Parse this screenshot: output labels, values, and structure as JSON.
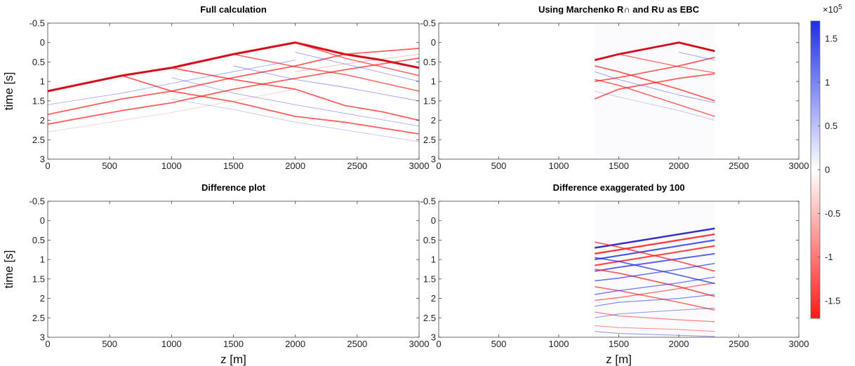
{
  "chart_data": [
    {
      "type": "heatmap",
      "title": "Full calculation",
      "xlabel": "",
      "ylabel": "time [s]",
      "xlim": [
        0,
        3000
      ],
      "ylim": [
        -0.5,
        3
      ],
      "y_reversed": true,
      "x_ticks": [
        "0",
        "500",
        "1000",
        "1500",
        "2000",
        "2500",
        "3000"
      ],
      "y_ticks": [
        "-0.5",
        "0",
        "0.5",
        "1",
        "1.5",
        "2",
        "2.5",
        "3"
      ],
      "events": [
        {
          "polarity": -1,
          "weight": 3.2,
          "points": [
            [
              0,
              1.25
            ],
            [
              600,
              0.85
            ],
            [
              1000,
              0.65
            ],
            [
              1500,
              0.3
            ],
            [
              2000,
              0.0
            ],
            [
              2400,
              0.3
            ],
            [
              2700,
              0.45
            ],
            [
              3000,
              0.65
            ]
          ]
        },
        {
          "polarity": -1,
          "weight": 1.8,
          "points": [
            [
              600,
              0.85
            ],
            [
              1000,
              1.25
            ],
            [
              1500,
              1.52
            ],
            [
              2000,
              1.9
            ],
            [
              2400,
              2.05
            ],
            [
              3000,
              2.35
            ]
          ]
        },
        {
          "polarity": -1,
          "weight": 1.8,
          "points": [
            [
              1000,
              0.65
            ],
            [
              1500,
              0.95
            ],
            [
              2000,
              1.2
            ],
            [
              2400,
              1.62
            ],
            [
              2700,
              1.78
            ],
            [
              3000,
              2.0
            ]
          ]
        },
        {
          "polarity": -1,
          "weight": 1.6,
          "points": [
            [
              1500,
              0.3
            ],
            [
              2000,
              0.62
            ],
            [
              2400,
              0.82
            ],
            [
              3000,
              1.25
            ]
          ]
        },
        {
          "polarity": -1,
          "weight": 1.6,
          "points": [
            [
              2000,
              0.0
            ],
            [
              2400,
              0.4
            ],
            [
              3000,
              0.85
            ]
          ]
        },
        {
          "polarity": -1,
          "weight": 1.8,
          "points": [
            [
              0,
              1.85
            ],
            [
              600,
              1.45
            ],
            [
              1000,
              1.25
            ],
            [
              1500,
              0.9
            ],
            [
              2000,
              0.6
            ],
            [
              2400,
              0.3
            ],
            [
              3000,
              0.15
            ]
          ]
        },
        {
          "polarity": -1,
          "weight": 1.8,
          "points": [
            [
              0,
              2.1
            ],
            [
              600,
              1.75
            ],
            [
              1000,
              1.55
            ],
            [
              1500,
              1.2
            ],
            [
              2000,
              0.92
            ],
            [
              2400,
              0.7
            ],
            [
              3000,
              0.4
            ]
          ]
        },
        {
          "polarity": 1,
          "weight": 0.9,
          "points": [
            [
              1500,
              0.6
            ],
            [
              2000,
              0.95
            ],
            [
              2400,
              1.15
            ],
            [
              3000,
              1.5
            ]
          ]
        },
        {
          "polarity": 1,
          "weight": 0.9,
          "points": [
            [
              2000,
              0.25
            ],
            [
              2400,
              0.55
            ],
            [
              3000,
              1.0
            ]
          ]
        },
        {
          "polarity": 1,
          "weight": 0.8,
          "points": [
            [
              1000,
              0.9
            ],
            [
              1500,
              1.3
            ],
            [
              2000,
              1.6
            ],
            [
              3000,
              2.15
            ]
          ]
        },
        {
          "polarity": 1,
          "weight": 0.8,
          "points": [
            [
              0,
              1.6
            ],
            [
              600,
              1.3
            ],
            [
              1000,
              1.05
            ],
            [
              1500,
              0.75
            ],
            [
              2000,
              0.45
            ]
          ]
        },
        {
          "polarity": -1,
          "weight": 0.7,
          "points": [
            [
              2000,
              0.75
            ],
            [
              2400,
              0.55
            ],
            [
              3000,
              0.3
            ]
          ]
        },
        {
          "polarity": 1,
          "weight": 0.6,
          "points": [
            [
              1000,
              1.45
            ],
            [
              1500,
              1.72
            ],
            [
              2000,
              2.05
            ],
            [
              3000,
              2.55
            ]
          ]
        },
        {
          "polarity": -1,
          "weight": 0.5,
          "points": [
            [
              0,
              2.3
            ],
            [
              600,
              2.0
            ],
            [
              1000,
              1.8
            ],
            [
              1500,
              1.5
            ],
            [
              2000,
              1.2
            ]
          ]
        }
      ]
    },
    {
      "type": "heatmap",
      "title": "Using Marchenko R∩ and R∪ as EBC",
      "xlabel": "",
      "ylabel": "",
      "xlim": [
        0,
        3000
      ],
      "ylim": [
        -0.5,
        3
      ],
      "y_reversed": true,
      "x_ticks": [
        "0",
        "500",
        "1000",
        "1500",
        "2000",
        "2500",
        "3000"
      ],
      "y_ticks": [
        "-0.5",
        "0",
        "0.5",
        "1",
        "1.5",
        "2",
        "2.5",
        "3"
      ],
      "window": [
        1300,
        2300
      ],
      "events": [
        {
          "polarity": -1,
          "weight": 3.0,
          "points": [
            [
              1300,
              0.45
            ],
            [
              1500,
              0.3
            ],
            [
              2000,
              0.0
            ],
            [
              2300,
              0.22
            ]
          ]
        },
        {
          "polarity": -1,
          "weight": 1.8,
          "points": [
            [
              1300,
              1.0
            ],
            [
              1500,
              0.9
            ],
            [
              2000,
              0.6
            ],
            [
              2300,
              0.38
            ]
          ]
        },
        {
          "polarity": -1,
          "weight": 1.8,
          "points": [
            [
              1300,
              0.6
            ],
            [
              1500,
              0.75
            ],
            [
              2000,
              1.2
            ],
            [
              2300,
              1.5
            ]
          ]
        },
        {
          "polarity": -1,
          "weight": 1.8,
          "points": [
            [
              1300,
              1.45
            ],
            [
              1500,
              1.2
            ],
            [
              2000,
              0.92
            ],
            [
              2300,
              0.8
            ]
          ]
        },
        {
          "polarity": -1,
          "weight": 1.6,
          "points": [
            [
              1300,
              0.95
            ],
            [
              1500,
              1.1
            ],
            [
              2000,
              1.6
            ],
            [
              2300,
              1.9
            ]
          ]
        },
        {
          "polarity": -1,
          "weight": 1.4,
          "points": [
            [
              1500,
              0.3
            ],
            [
              2000,
              0.62
            ],
            [
              2300,
              0.78
            ]
          ]
        },
        {
          "polarity": 1,
          "weight": 0.9,
          "points": [
            [
              1300,
              0.75
            ],
            [
              1500,
              0.95
            ],
            [
              2000,
              1.35
            ],
            [
              2300,
              1.55
            ]
          ]
        },
        {
          "polarity": 1,
          "weight": 0.9,
          "points": [
            [
              2000,
              0.25
            ],
            [
              2300,
              0.45
            ]
          ]
        },
        {
          "polarity": 1,
          "weight": 0.6,
          "points": [
            [
              1300,
              1.25
            ],
            [
              1500,
              1.4
            ],
            [
              2000,
              1.75
            ],
            [
              2300,
              2.0
            ]
          ]
        }
      ]
    },
    {
      "type": "heatmap",
      "title": "Difference plot",
      "xlabel": "z [m]",
      "ylabel": "time [s]",
      "xlim": [
        0,
        3000
      ],
      "ylim": [
        -0.5,
        3
      ],
      "y_reversed": true,
      "x_ticks": [
        "0",
        "500",
        "1000",
        "1500",
        "2000",
        "2500",
        "3000"
      ],
      "y_ticks": [
        "-0.5",
        "0",
        "0.5",
        "1",
        "1.5",
        "2",
        "2.5",
        "3"
      ],
      "events": []
    },
    {
      "type": "heatmap",
      "title": "Difference exaggerated by 100",
      "xlabel": "z [m]",
      "ylabel": "",
      "xlim": [
        0,
        3000
      ],
      "ylim": [
        -0.5,
        3
      ],
      "y_reversed": true,
      "x_ticks": [
        "0",
        "500",
        "1000",
        "1500",
        "2000",
        "2500",
        "3000"
      ],
      "y_ticks": [
        "-0.5",
        "0",
        "0.5",
        "1",
        "1.5",
        "2",
        "2.5",
        "3"
      ],
      "window": [
        1300,
        2300
      ],
      "events": [
        {
          "polarity": 1,
          "weight": 2.6,
          "points": [
            [
              1300,
              0.7
            ],
            [
              1500,
              0.6
            ],
            [
              2000,
              0.35
            ],
            [
              2300,
              0.2
            ]
          ]
        },
        {
          "polarity": -1,
          "weight": 2.4,
          "points": [
            [
              1300,
              0.85
            ],
            [
              1500,
              0.75
            ],
            [
              2000,
              0.5
            ],
            [
              2300,
              0.35
            ]
          ]
        },
        {
          "polarity": 1,
          "weight": 2.2,
          "points": [
            [
              1300,
              1.0
            ],
            [
              1500,
              0.9
            ],
            [
              2000,
              0.65
            ],
            [
              2300,
              0.5
            ]
          ]
        },
        {
          "polarity": -1,
          "weight": 2.2,
          "points": [
            [
              1300,
              1.15
            ],
            [
              1500,
              1.05
            ],
            [
              2000,
              0.8
            ],
            [
              2300,
              0.65
            ]
          ]
        },
        {
          "polarity": 1,
          "weight": 2.0,
          "points": [
            [
              1300,
              1.3
            ],
            [
              1500,
              1.2
            ],
            [
              2000,
              0.98
            ],
            [
              2300,
              0.85
            ]
          ]
        },
        {
          "polarity": -1,
          "weight": 1.8,
          "points": [
            [
              1300,
              0.55
            ],
            [
              1500,
              0.68
            ],
            [
              2000,
              1.05
            ],
            [
              2300,
              1.3
            ]
          ]
        },
        {
          "polarity": 1,
          "weight": 1.8,
          "points": [
            [
              1300,
              0.95
            ],
            [
              1500,
              1.05
            ],
            [
              2000,
              1.4
            ],
            [
              2300,
              1.62
            ]
          ]
        },
        {
          "polarity": -1,
          "weight": 1.8,
          "points": [
            [
              1300,
              1.25
            ],
            [
              1500,
              1.35
            ],
            [
              2000,
              1.7
            ],
            [
              2300,
              1.95
            ]
          ]
        },
        {
          "polarity": 1,
          "weight": 1.6,
          "points": [
            [
              1300,
              1.55
            ],
            [
              1500,
              1.48
            ],
            [
              2000,
              1.25
            ],
            [
              2300,
              1.1
            ]
          ]
        },
        {
          "polarity": -1,
          "weight": 1.6,
          "points": [
            [
              1300,
              1.7
            ],
            [
              1500,
              1.8
            ],
            [
              2000,
              2.1
            ],
            [
              2300,
              2.3
            ]
          ]
        },
        {
          "polarity": 1,
          "weight": 1.4,
          "points": [
            [
              1300,
              1.9
            ],
            [
              1500,
              1.8
            ],
            [
              2000,
              1.6
            ],
            [
              2300,
              1.45
            ]
          ]
        },
        {
          "polarity": -1,
          "weight": 1.4,
          "points": [
            [
              1300,
              2.05
            ],
            [
              1500,
              1.98
            ],
            [
              2000,
              1.75
            ],
            [
              2300,
              1.6
            ]
          ]
        },
        {
          "polarity": 1,
          "weight": 1.2,
          "points": [
            [
              1300,
              2.2
            ],
            [
              1500,
              2.1
            ],
            [
              2000,
              2.0
            ],
            [
              2300,
              1.9
            ]
          ]
        },
        {
          "polarity": -1,
          "weight": 1.2,
          "points": [
            [
              1300,
              2.35
            ],
            [
              1500,
              2.45
            ],
            [
              2000,
              2.55
            ],
            [
              2300,
              2.6
            ]
          ]
        },
        {
          "polarity": 1,
          "weight": 1.0,
          "points": [
            [
              1300,
              2.5
            ],
            [
              1500,
              2.4
            ],
            [
              2000,
              2.3
            ],
            [
              2300,
              2.25
            ]
          ]
        },
        {
          "polarity": -1,
          "weight": 1.0,
          "points": [
            [
              1300,
              2.7
            ],
            [
              1500,
              2.75
            ],
            [
              2000,
              2.8
            ],
            [
              2300,
              2.85
            ]
          ]
        },
        {
          "polarity": 1,
          "weight": 1.0,
          "points": [
            [
              1300,
              2.85
            ],
            [
              1500,
              2.9
            ],
            [
              2000,
              2.95
            ],
            [
              2300,
              2.98
            ]
          ]
        }
      ]
    }
  ],
  "colorbar": {
    "exponent_label": "×10",
    "exponent_power": "5",
    "ticks": [
      "1.5",
      "1",
      "0.5",
      "0",
      "-0.5",
      "-1",
      "-1.5"
    ],
    "tick_values": [
      1.5,
      1,
      0.5,
      0,
      -0.5,
      -1,
      -1.5
    ],
    "range": [
      -1.7,
      1.7
    ],
    "colors": {
      "positive": "#1f2ee8",
      "zero": "#ffffff",
      "negative": "#ff1a1a"
    }
  }
}
